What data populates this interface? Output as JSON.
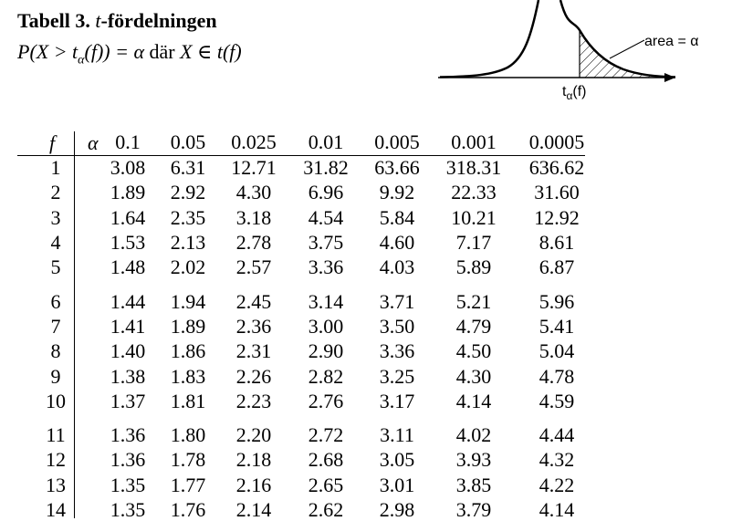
{
  "header": {
    "title_prefix": "Tabell 3.",
    "title_var": "t",
    "title_suffix": "-fördelningen",
    "formula_start": "P(X > t",
    "formula_sub": "α",
    "formula_mid": "(f)) = α",
    "formula_dar": "där",
    "formula_end": "X ∈ t(f)"
  },
  "figure": {
    "area_label": "area = α",
    "t_label_main": "t",
    "t_label_sub": "α",
    "t_label_end": "(f)"
  },
  "table": {
    "f_header": "f",
    "alpha_symbol": "α",
    "alpha_values": [
      "0.1",
      "0.05",
      "0.025",
      "0.01",
      "0.005",
      "0.001",
      "0.0005"
    ],
    "rows": [
      {
        "f": "1",
        "values": [
          "3.08",
          "6.31",
          "12.71",
          "31.82",
          "63.66",
          "318.31",
          "636.62"
        ]
      },
      {
        "f": "2",
        "values": [
          "1.89",
          "2.92",
          "4.30",
          "6.96",
          "9.92",
          "22.33",
          "31.60"
        ]
      },
      {
        "f": "3",
        "values": [
          "1.64",
          "2.35",
          "3.18",
          "4.54",
          "5.84",
          "10.21",
          "12.92"
        ]
      },
      {
        "f": "4",
        "values": [
          "1.53",
          "2.13",
          "2.78",
          "3.75",
          "4.60",
          "7.17",
          "8.61"
        ]
      },
      {
        "f": "5",
        "values": [
          "1.48",
          "2.02",
          "2.57",
          "3.36",
          "4.03",
          "5.89",
          "6.87"
        ]
      },
      {
        "f": "6",
        "values": [
          "1.44",
          "1.94",
          "2.45",
          "3.14",
          "3.71",
          "5.21",
          "5.96"
        ]
      },
      {
        "f": "7",
        "values": [
          "1.41",
          "1.89",
          "2.36",
          "3.00",
          "3.50",
          "4.79",
          "5.41"
        ]
      },
      {
        "f": "8",
        "values": [
          "1.40",
          "1.86",
          "2.31",
          "2.90",
          "3.36",
          "4.50",
          "5.04"
        ]
      },
      {
        "f": "9",
        "values": [
          "1.38",
          "1.83",
          "2.26",
          "2.82",
          "3.25",
          "4.30",
          "4.78"
        ]
      },
      {
        "f": "10",
        "values": [
          "1.37",
          "1.81",
          "2.23",
          "2.76",
          "3.17",
          "4.14",
          "4.59"
        ]
      },
      {
        "f": "11",
        "values": [
          "1.36",
          "1.80",
          "2.20",
          "2.72",
          "3.11",
          "4.02",
          "4.44"
        ]
      },
      {
        "f": "12",
        "values": [
          "1.36",
          "1.78",
          "2.18",
          "2.68",
          "3.05",
          "3.93",
          "4.32"
        ]
      },
      {
        "f": "13",
        "values": [
          "1.35",
          "1.77",
          "2.16",
          "2.65",
          "3.01",
          "3.85",
          "4.22"
        ]
      },
      {
        "f": "14",
        "values": [
          "1.35",
          "1.76",
          "2.14",
          "2.62",
          "2.98",
          "3.79",
          "4.14"
        ]
      }
    ]
  }
}
